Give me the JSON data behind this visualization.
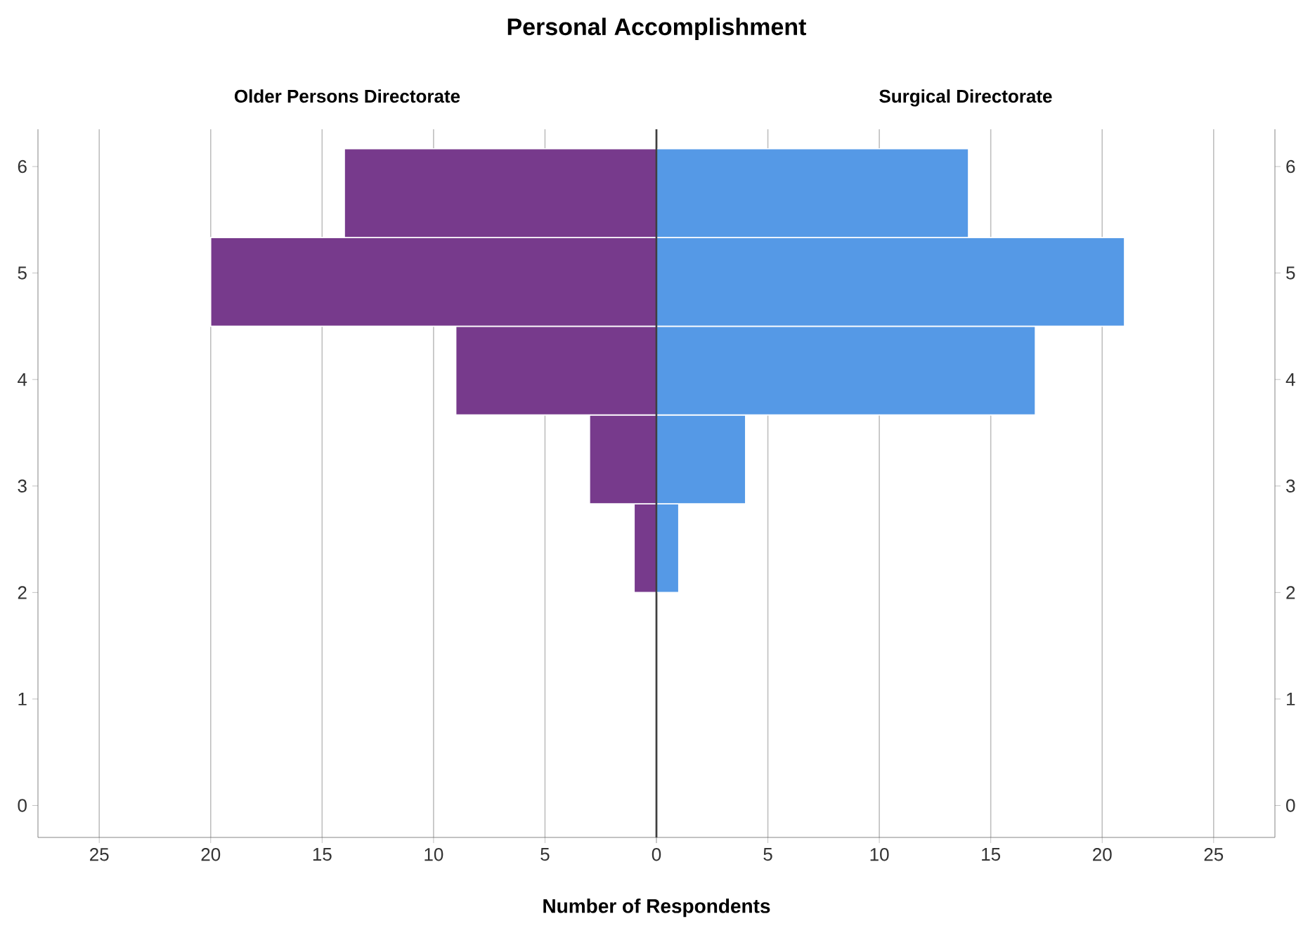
{
  "chart_data": [
    {
      "type": "histogram",
      "orientation": "horizontal",
      "title": "Older Persons Directorate",
      "annotations": [
        "Personal Accomplishment"
      ],
      "xlabel": "Number of Respondents",
      "bins": [
        2,
        2.833,
        3.667,
        4.5,
        5.333,
        6.167
      ],
      "values": [
        1,
        3,
        9,
        20,
        14
      ],
      "color": "#773a8c",
      "xlim": [
        27.75,
        0
      ],
      "xticks": [
        {
          "value": 0,
          "label": null
        },
        5,
        10,
        15,
        20,
        25
      ],
      "ylim": [
        -0.3,
        6.35
      ],
      "yticks": [
        0,
        1,
        2,
        3,
        4,
        5,
        6
      ],
      "grid": "x"
    },
    {
      "type": "histogram",
      "orientation": "horizontal",
      "title": "Surgical Directorate",
      "bins": [
        2,
        2.833,
        3.667,
        4.5,
        5.333,
        6.167
      ],
      "values": [
        1,
        4,
        17,
        21,
        14
      ],
      "color": "#5599e6",
      "xlim": [
        0,
        27.75
      ],
      "xticks": [
        0,
        5,
        10,
        15,
        20,
        25
      ],
      "ylim": [
        -0.3,
        6.35
      ],
      "yticks": [
        0,
        1,
        2,
        3,
        4,
        5,
        6
      ],
      "grid": "x"
    }
  ]
}
